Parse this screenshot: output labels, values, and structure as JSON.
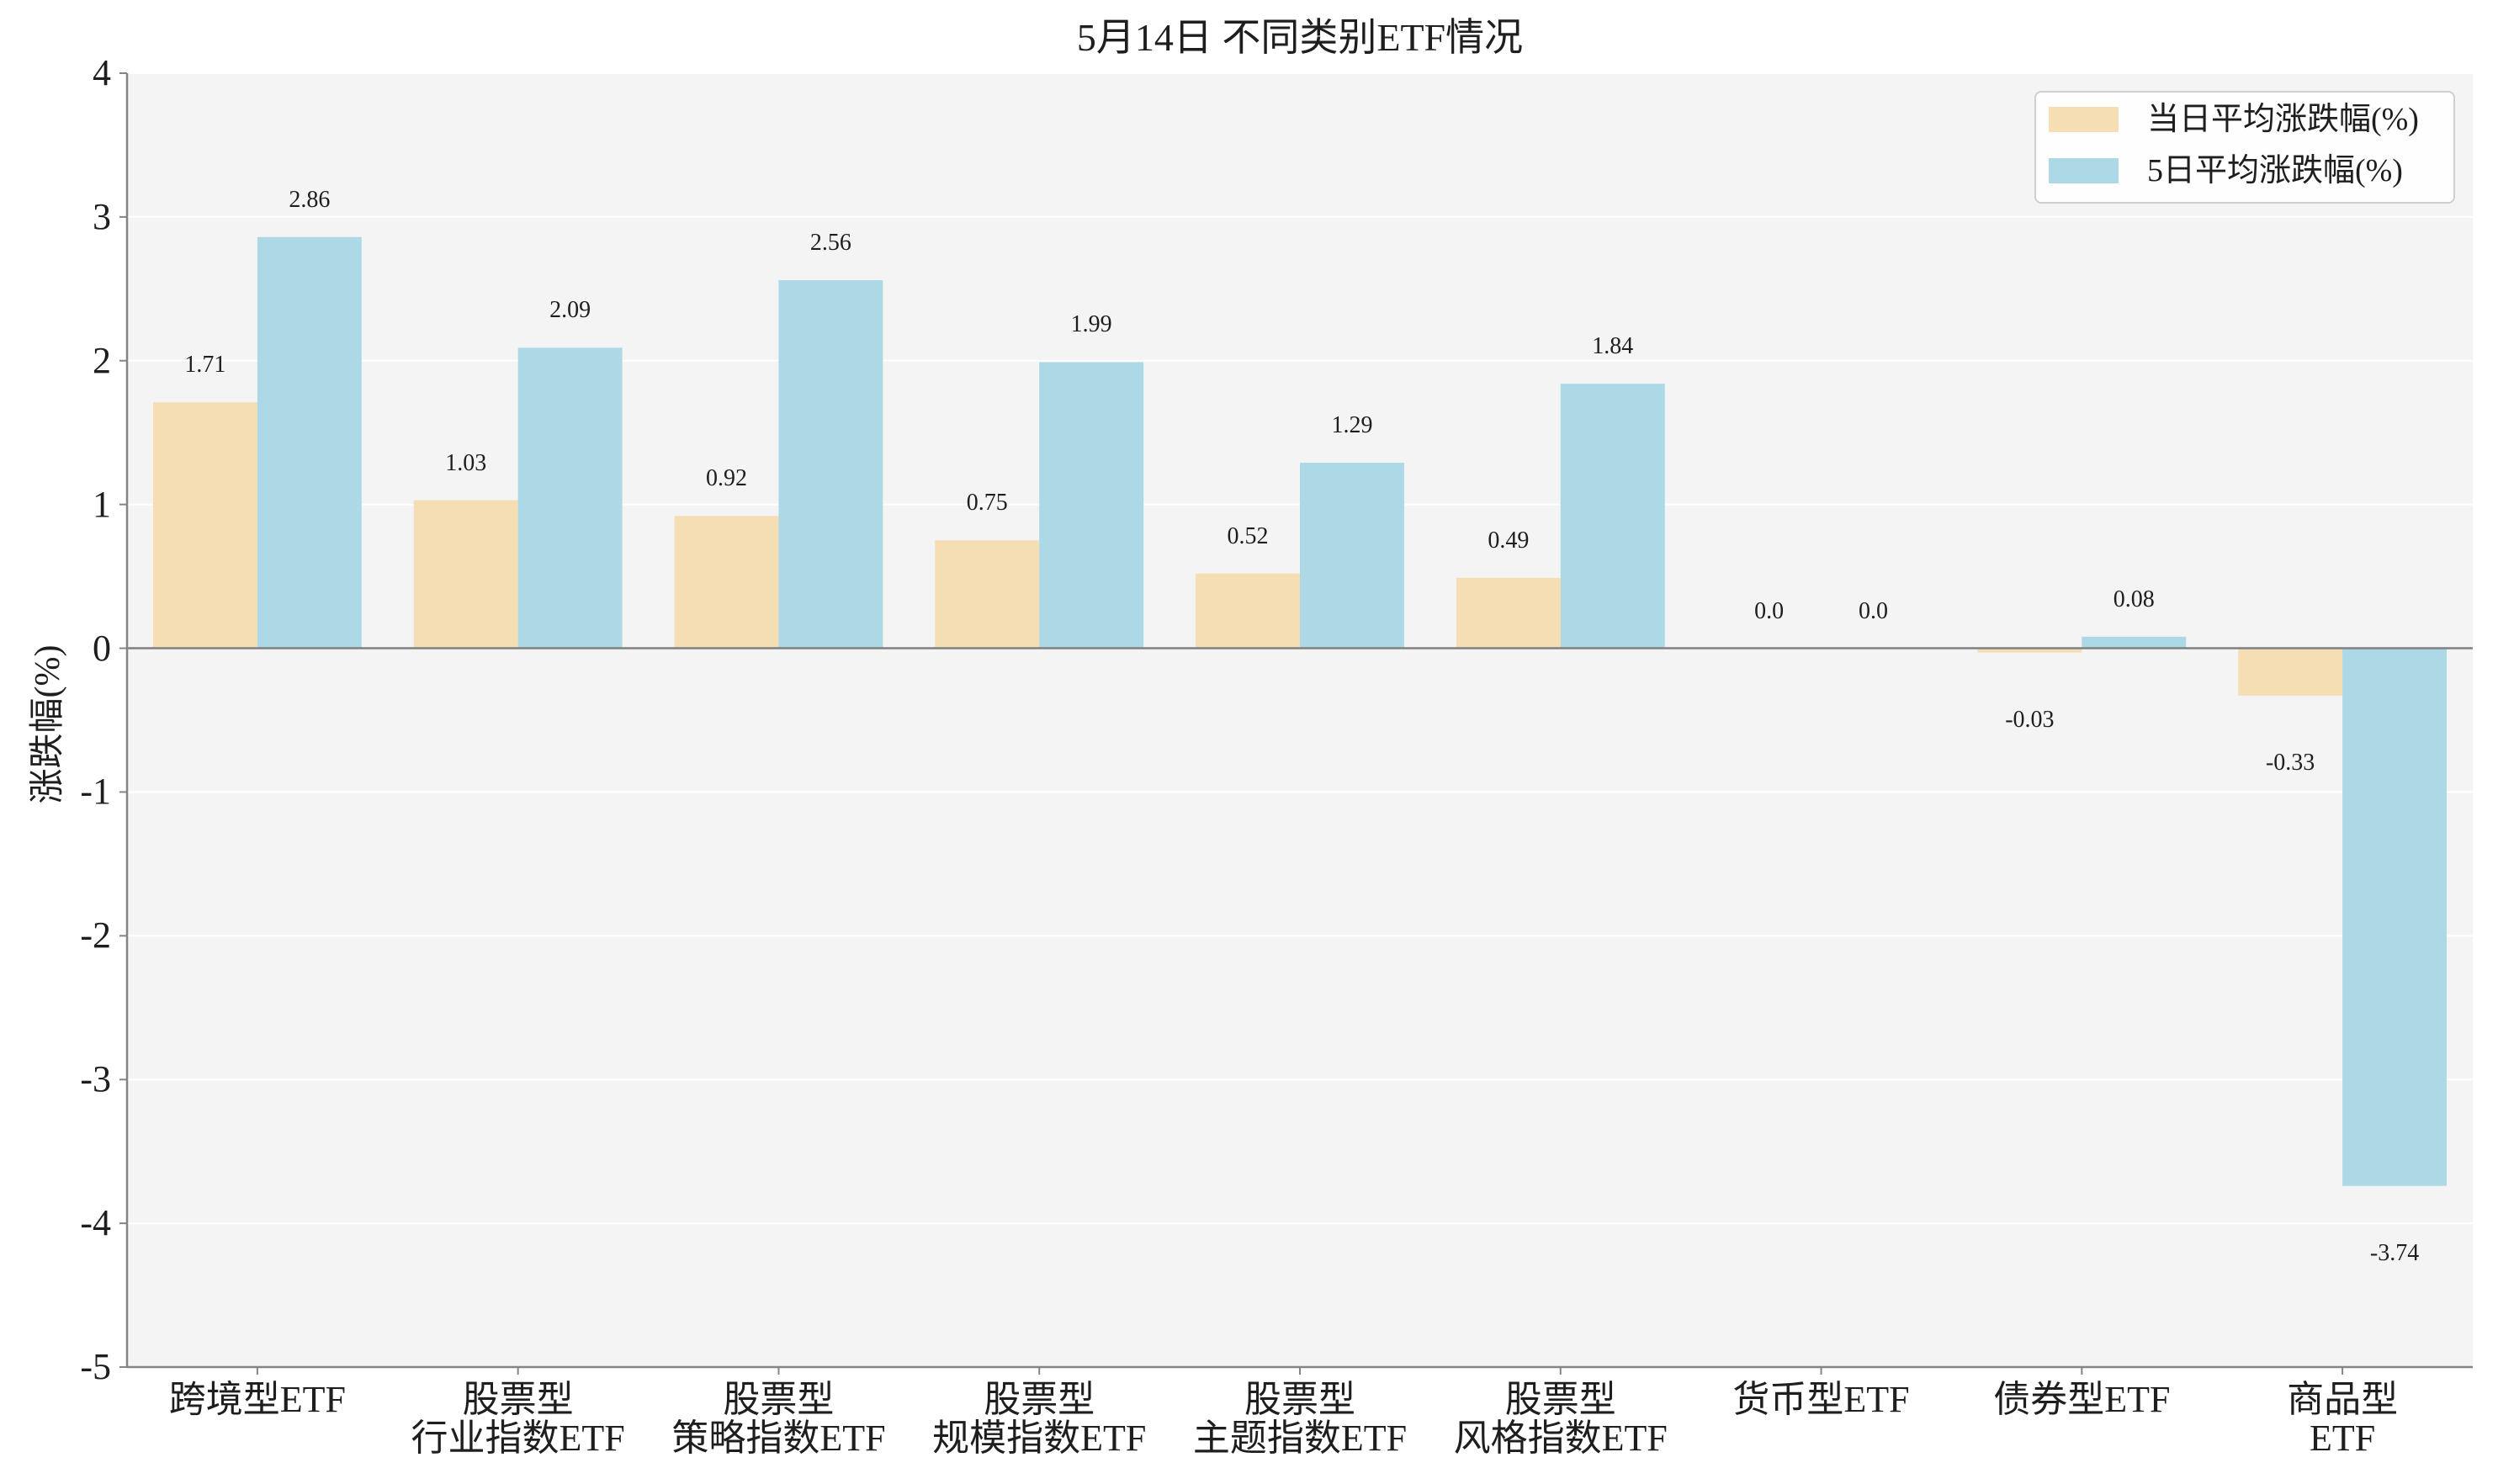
{
  "chart_data": {
    "type": "bar",
    "title": "5月14日 不同类别ETF情况",
    "ylabel": "涨跌幅(%)",
    "ylim": [
      -5,
      4
    ],
    "yticks": [
      4,
      3,
      2,
      1,
      0,
      -1,
      -2,
      -3,
      -4,
      -5
    ],
    "categories": [
      "跨境型ETF",
      "股票型\n行业指数ETF",
      "股票型\n策略指数ETF",
      "股票型\n规模指数ETF",
      "股票型\n主题指数ETF",
      "股票型\n风格指数ETF",
      "货币型ETF",
      "债券型ETF",
      "商品型ETF"
    ],
    "series": [
      {
        "name": "当日平均涨跌幅(%)",
        "color": "#F5DEB3",
        "values": [
          1.71,
          1.03,
          0.92,
          0.75,
          0.52,
          0.49,
          0.0,
          -0.03,
          -0.33
        ],
        "data_labels": [
          "1.71",
          "1.03",
          "0.92",
          "0.75",
          "0.52",
          "0.49",
          "0.0",
          "-0.03",
          "-0.33"
        ]
      },
      {
        "name": "5日平均涨跌幅(%)",
        "color": "#ADD8E6",
        "values": [
          2.86,
          2.09,
          2.56,
          1.99,
          1.29,
          1.84,
          0.0,
          0.08,
          -3.74
        ],
        "data_labels": [
          "2.86",
          "2.09",
          "2.56",
          "1.99",
          "1.29",
          "1.84",
          "0.0",
          "0.08",
          "-3.74"
        ]
      }
    ],
    "grid": true,
    "zero_line": true,
    "legend_position": "top-right"
  }
}
